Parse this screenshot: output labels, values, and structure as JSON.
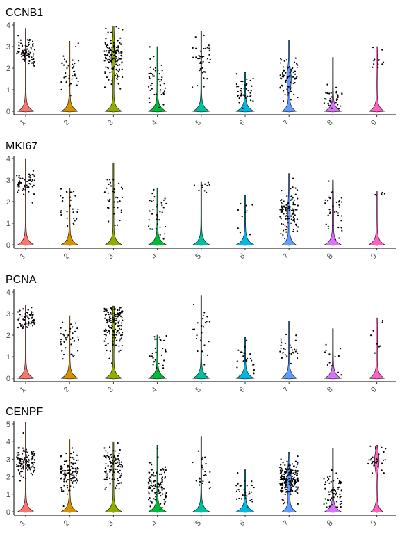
{
  "chart_data": [
    {
      "type": "violin",
      "title": "CCNB1",
      "xlabel": "",
      "ylabel": "",
      "ylim": [
        0,
        4
      ],
      "yticks": [
        0,
        1,
        2,
        3,
        4
      ],
      "categories": [
        "1",
        "2",
        "3",
        "4",
        "5",
        "6",
        "7",
        "8",
        "9"
      ],
      "colors": [
        "#F8766D",
        "#D39200",
        "#93AA00",
        "#00BA38",
        "#00C19F",
        "#00B9E3",
        "#619CFF",
        "#DB72FB",
        "#FF61C3"
      ],
      "ymax": [
        3.85,
        3.25,
        3.95,
        3.0,
        3.7,
        1.8,
        3.3,
        2.5,
        3.0
      ],
      "base_width": [
        0.4,
        0.42,
        0.42,
        0.45,
        0.42,
        0.45,
        0.35,
        0.42,
        0.38
      ],
      "cluster_center": [
        2.8,
        1.7,
        2.5,
        1.3,
        2.4,
        0.9,
        1.5,
        0.6,
        2.4
      ],
      "cluster_spread": [
        0.35,
        0.55,
        0.6,
        0.55,
        0.6,
        0.4,
        0.4,
        0.45,
        0.4
      ],
      "point_count": [
        80,
        40,
        130,
        45,
        40,
        40,
        70,
        35,
        12
      ],
      "upper_width": [
        0,
        0,
        0.08,
        0,
        0,
        0,
        0.1,
        0,
        0.02
      ]
    },
    {
      "type": "violin",
      "title": "MKI67",
      "xlabel": "",
      "ylabel": "",
      "ylim": [
        0,
        4
      ],
      "yticks": [
        0,
        1,
        2,
        3,
        4
      ],
      "categories": [
        "1",
        "2",
        "3",
        "4",
        "5",
        "6",
        "7",
        "8",
        "9"
      ],
      "colors": [
        "#F8766D",
        "#D39200",
        "#93AA00",
        "#00BA38",
        "#00C19F",
        "#00B9E3",
        "#619CFF",
        "#DB72FB",
        "#FF61C3"
      ],
      "ymax": [
        4.0,
        2.6,
        3.8,
        2.6,
        2.9,
        2.3,
        3.3,
        3.0,
        2.5
      ],
      "base_width": [
        0.4,
        0.42,
        0.42,
        0.45,
        0.42,
        0.45,
        0.35,
        0.42,
        0.4
      ],
      "cluster_center": [
        2.8,
        1.7,
        2.3,
        1.5,
        2.7,
        1.3,
        1.5,
        1.5,
        2.4
      ],
      "cluster_spread": [
        0.3,
        0.5,
        0.55,
        0.55,
        0.25,
        0.4,
        0.5,
        0.6,
        0.1
      ],
      "point_count": [
        55,
        30,
        35,
        35,
        10,
        10,
        110,
        35,
        5
      ],
      "upper_width": [
        0,
        0,
        0,
        0,
        0,
        0,
        0.04,
        0.02,
        0
      ]
    },
    {
      "type": "violin",
      "title": "PCNA",
      "xlabel": "",
      "ylabel": "",
      "ylim": [
        0,
        4
      ],
      "yticks": [
        0,
        1,
        2,
        3,
        4
      ],
      "categories": [
        "1",
        "2",
        "3",
        "4",
        "5",
        "6",
        "7",
        "8",
        "9"
      ],
      "colors": [
        "#F8766D",
        "#D39200",
        "#93AA00",
        "#00BA38",
        "#00C19F",
        "#00B9E3",
        "#619CFF",
        "#DB72FB",
        "#FF61C3"
      ],
      "ymax": [
        3.4,
        2.9,
        3.35,
        2.0,
        3.85,
        1.9,
        2.65,
        2.3,
        2.8
      ],
      "base_width": [
        0.4,
        0.42,
        0.42,
        0.45,
        0.42,
        0.45,
        0.4,
        0.42,
        0.38
      ],
      "cluster_center": [
        2.75,
        1.7,
        2.4,
        1.1,
        1.8,
        0.9,
        1.3,
        0.8,
        1.9
      ],
      "cluster_spread": [
        0.25,
        0.5,
        0.6,
        0.5,
        0.8,
        0.4,
        0.4,
        0.5,
        0.5
      ],
      "point_count": [
        60,
        40,
        140,
        30,
        25,
        25,
        30,
        12,
        8
      ],
      "upper_width": [
        0,
        0,
        0.04,
        0,
        0,
        0,
        0,
        0,
        0.02
      ]
    },
    {
      "type": "violin",
      "title": "CENPF",
      "xlabel": "",
      "ylabel": "",
      "ylim": [
        0,
        5
      ],
      "yticks": [
        0,
        1,
        2,
        3,
        4,
        5
      ],
      "categories": [
        "1",
        "2",
        "3",
        "4",
        "5",
        "6",
        "7",
        "8",
        "9"
      ],
      "colors": [
        "#F8766D",
        "#D39200",
        "#93AA00",
        "#00BA38",
        "#00C19F",
        "#00B9E3",
        "#619CFF",
        "#DB72FB",
        "#FF61C3"
      ],
      "ymax": [
        5.1,
        4.1,
        4.0,
        3.8,
        4.3,
        2.4,
        3.4,
        3.6,
        3.8
      ],
      "base_width": [
        0.4,
        0.42,
        0.42,
        0.45,
        0.42,
        0.45,
        0.35,
        0.42,
        0.3
      ],
      "cluster_center": [
        2.9,
        2.2,
        2.6,
        1.5,
        2.3,
        1.0,
        1.8,
        1.2,
        2.9
      ],
      "cluster_spread": [
        0.45,
        0.6,
        0.6,
        0.65,
        0.7,
        0.45,
        0.55,
        0.65,
        0.45
      ],
      "point_count": [
        110,
        120,
        100,
        110,
        25,
        30,
        190,
        60,
        30
      ],
      "upper_width": [
        0,
        0,
        0,
        0,
        0,
        0,
        0.1,
        0,
        0.1
      ]
    }
  ]
}
